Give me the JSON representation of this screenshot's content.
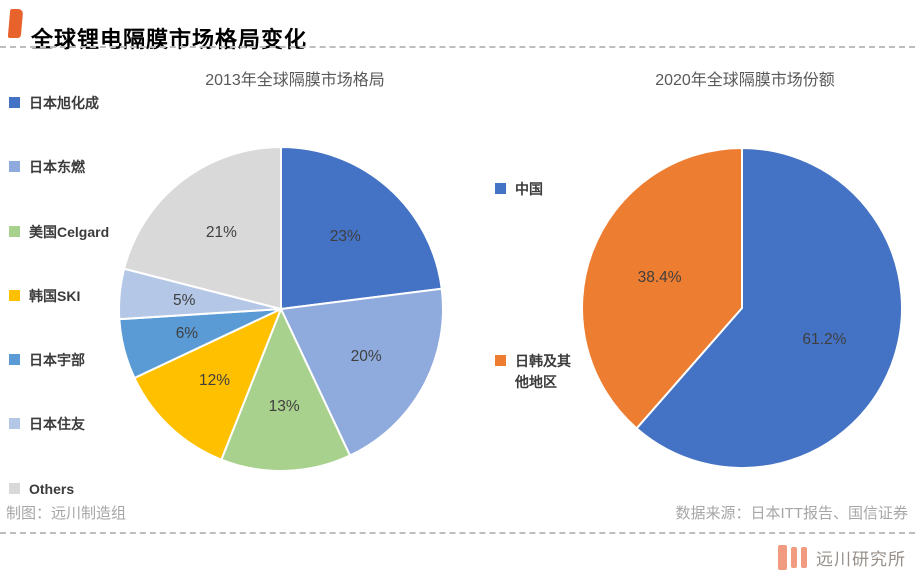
{
  "header": {
    "title": "全球锂电隔膜市场格局变化",
    "accent_color": "#E8632C"
  },
  "chart_data": [
    {
      "type": "pie",
      "title": "2013年全球隔膜市场格局",
      "legend_position": "left",
      "start_angle_deg": 0,
      "direction": "clockwise",
      "slices": [
        {
          "label": "日本旭化成",
          "value": 23,
          "pct_label": "23%",
          "color": "#4472C4"
        },
        {
          "label": "日本东燃",
          "value": 20,
          "pct_label": "20%",
          "color": "#8FAADC"
        },
        {
          "label": "美国Celgard",
          "value": 13,
          "pct_label": "13%",
          "color": "#A9D18E"
        },
        {
          "label": "韩国SKI",
          "value": 12,
          "pct_label": "12%",
          "color": "#FFC000"
        },
        {
          "label": "日本宇部",
          "value": 6,
          "pct_label": "6%",
          "color": "#5B9BD5"
        },
        {
          "label": "日本住友",
          "value": 5,
          "pct_label": "5%",
          "color": "#B4C7E7"
        },
        {
          "label": "Others",
          "value": 21,
          "pct_label": "21%",
          "color": "#D9D9D9"
        }
      ]
    },
    {
      "type": "pie",
      "title": "2020年全球隔膜市场份额",
      "legend_position": "left",
      "start_angle_deg": 0,
      "direction": "clockwise",
      "slices": [
        {
          "label": "中国",
          "value": 61.2,
          "pct_label": "61.2%",
          "color": "#4472C4"
        },
        {
          "label": "日韩及其他地区",
          "value": 38.4,
          "pct_label": "38.4%",
          "color": "#ED7D31"
        }
      ]
    }
  ],
  "footer": {
    "left_note": "制图：远川制造组",
    "right_note": "数据来源：日本ITT报告、国信证券",
    "brand": "远川研究所",
    "brand_color": "#F19B80"
  },
  "style": {
    "slice_label_color": "#3F3F3F",
    "slice_border_color": "#FFFFFF"
  }
}
